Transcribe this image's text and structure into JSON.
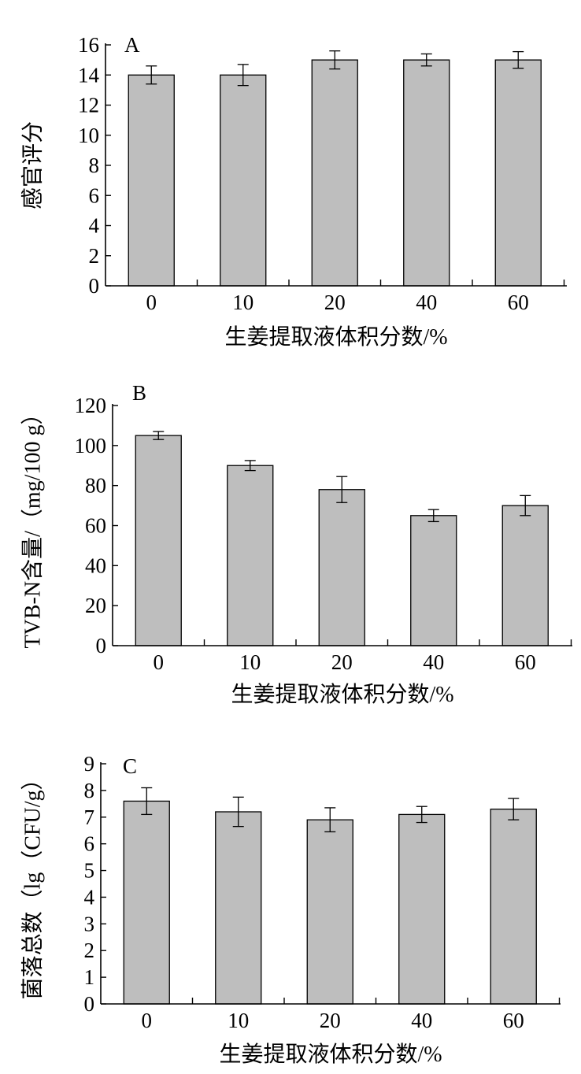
{
  "chart_data": [
    {
      "type": "bar",
      "panel_label": "A",
      "categories": [
        "0",
        "10",
        "20",
        "40",
        "60"
      ],
      "values": [
        14,
        14,
        15,
        15,
        15
      ],
      "errors": [
        0.6,
        0.7,
        0.6,
        0.4,
        0.55
      ],
      "xlabel": "生姜提取液体积分数/%",
      "ylabel": "感官评分",
      "ylim": [
        0,
        16
      ],
      "yticks": [
        0,
        2,
        4,
        6,
        8,
        10,
        12,
        14,
        16
      ],
      "bar_color": "#bebebe"
    },
    {
      "type": "bar",
      "panel_label": "B",
      "categories": [
        "0",
        "10",
        "20",
        "40",
        "60"
      ],
      "values": [
        105,
        90,
        78,
        65,
        70
      ],
      "errors": [
        2,
        2.5,
        6.5,
        3,
        5
      ],
      "xlabel": "生姜提取液体积分数/%",
      "ylabel": "TVB-N含量/（mg/100 g）",
      "ylim": [
        0,
        120
      ],
      "yticks": [
        0,
        20,
        40,
        60,
        80,
        100,
        120
      ],
      "bar_color": "#bebebe"
    },
    {
      "type": "bar",
      "panel_label": "C",
      "categories": [
        "0",
        "10",
        "20",
        "40",
        "60"
      ],
      "values": [
        7.6,
        7.2,
        6.9,
        7.1,
        7.3
      ],
      "errors": [
        0.5,
        0.55,
        0.45,
        0.3,
        0.4
      ],
      "xlabel": "生姜提取液体积分数/%",
      "ylabel": "菌落总数（lg（CFU/g）",
      "ylim": [
        0,
        9
      ],
      "yticks": [
        0,
        1,
        2,
        3,
        4,
        5,
        6,
        7,
        8,
        9
      ],
      "bar_color": "#bebebe"
    }
  ]
}
